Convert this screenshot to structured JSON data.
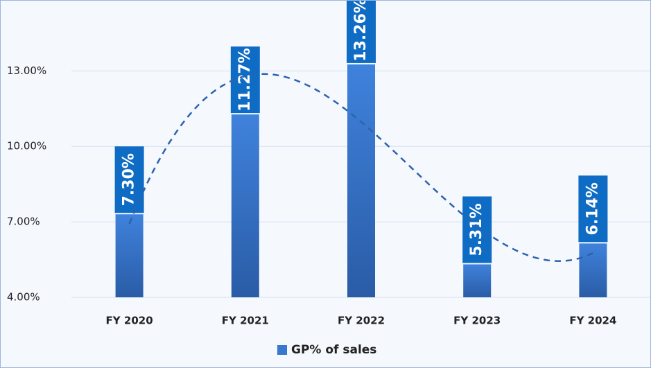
{
  "chart_data": {
    "type": "bar",
    "categories": [
      "FY 2020",
      "FY 2021",
      "FY 2022",
      "FY 2023",
      "FY 2024"
    ],
    "series": [
      {
        "name": "GP% of sales",
        "color": "#3a78cf",
        "values": [
          7.3,
          11.27,
          13.26,
          5.31,
          6.14
        ],
        "value_labels": [
          "7.30%",
          "11.27%",
          "13.26%",
          "5.31%",
          "6.14%"
        ]
      }
    ],
    "ylim": [
      4,
      15.6
    ],
    "yticks": [
      {
        "value": 4,
        "label": "4.00%"
      },
      {
        "value": 7,
        "label": "7.00%"
      },
      {
        "value": 10,
        "label": "10.00%"
      },
      {
        "value": 13,
        "label": "13.00%"
      }
    ],
    "grid": true,
    "legend": "bottom",
    "trendline": "polynomial",
    "trendline_order": 3
  }
}
